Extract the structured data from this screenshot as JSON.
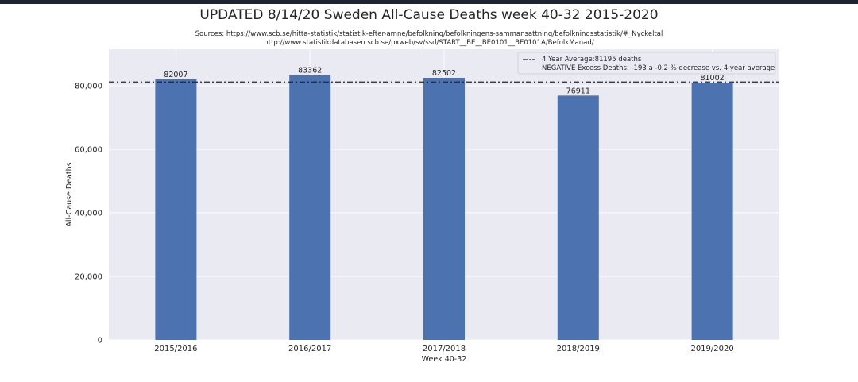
{
  "chart_data": {
    "type": "bar",
    "title": "UPDATED 8/14/20 Sweden All-Cause Deaths week 40-32 2015-2020",
    "sources": [
      "Sources: https://www.scb.se/hitta-statistik/statistik-efter-amne/befolkning/befolkningens-sammansattning/befolkningsstatistik/#_Nyckeltal",
      "http://www.statistikdatabasen.scb.se/pxweb/sv/ssd/START__BE__BE0101__BE0101A/BefolkManad/"
    ],
    "categories": [
      "2015/2016",
      "2016/2017",
      "2017/2018",
      "2018/2019",
      "2019/2020"
    ],
    "values": [
      82007,
      83362,
      82502,
      76911,
      81002
    ],
    "value_labels": [
      "82007",
      "83362",
      "82502",
      "76911",
      "81002"
    ],
    "xlabel": "Week 40-32",
    "ylabel": "All-Cause Deaths",
    "ylim": [
      0,
      91500
    ],
    "yticks": [
      0,
      20000,
      40000,
      60000,
      80000
    ],
    "ytick_labels": [
      "0",
      "20,000",
      "40,000",
      "60,000",
      "80,000"
    ],
    "average": 81195,
    "legend": [
      "4 Year Average:81195 deaths",
      "NEGATIVE Excess Deaths: -193 a -0.2 % decrease vs. 4 year average"
    ],
    "legend_position": "top-right",
    "grid": true,
    "colors": {
      "bar": "#4c72b0",
      "background": "#eaeaf2",
      "grid": "#ffffff",
      "average_line": "#262626"
    }
  }
}
